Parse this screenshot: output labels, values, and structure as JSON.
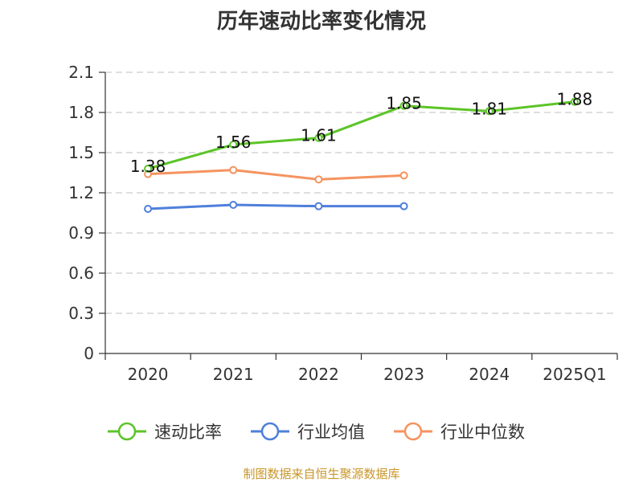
{
  "chart_data": {
    "type": "line",
    "title": "历年速动比率变化情况",
    "categories": [
      "2020",
      "2021",
      "2022",
      "2023",
      "2024",
      "2025Q1"
    ],
    "y_ticks": [
      "0",
      "0.3",
      "0.6",
      "0.9",
      "1.2",
      "1.5",
      "1.8",
      "2.1"
    ],
    "ylim": [
      0,
      2.1
    ],
    "grid": true,
    "legend_position": "bottom",
    "series": [
      {
        "name": "速动比率",
        "color": "#5cc428",
        "values": [
          1.38,
          1.56,
          1.61,
          1.85,
          1.81,
          1.88
        ],
        "labels": [
          "1.38",
          "1.56",
          "1.61",
          "1.85",
          "1.81",
          "1.88"
        ]
      },
      {
        "name": "行业均值",
        "color": "#4f7fdb",
        "values": [
          1.08,
          1.11,
          1.1,
          1.1,
          null,
          null
        ]
      },
      {
        "name": "行业中位数",
        "color": "#f5935f",
        "values": [
          1.34,
          1.37,
          1.3,
          1.33,
          null,
          null
        ]
      }
    ]
  },
  "source": "制图数据来自恒生聚源数据库"
}
